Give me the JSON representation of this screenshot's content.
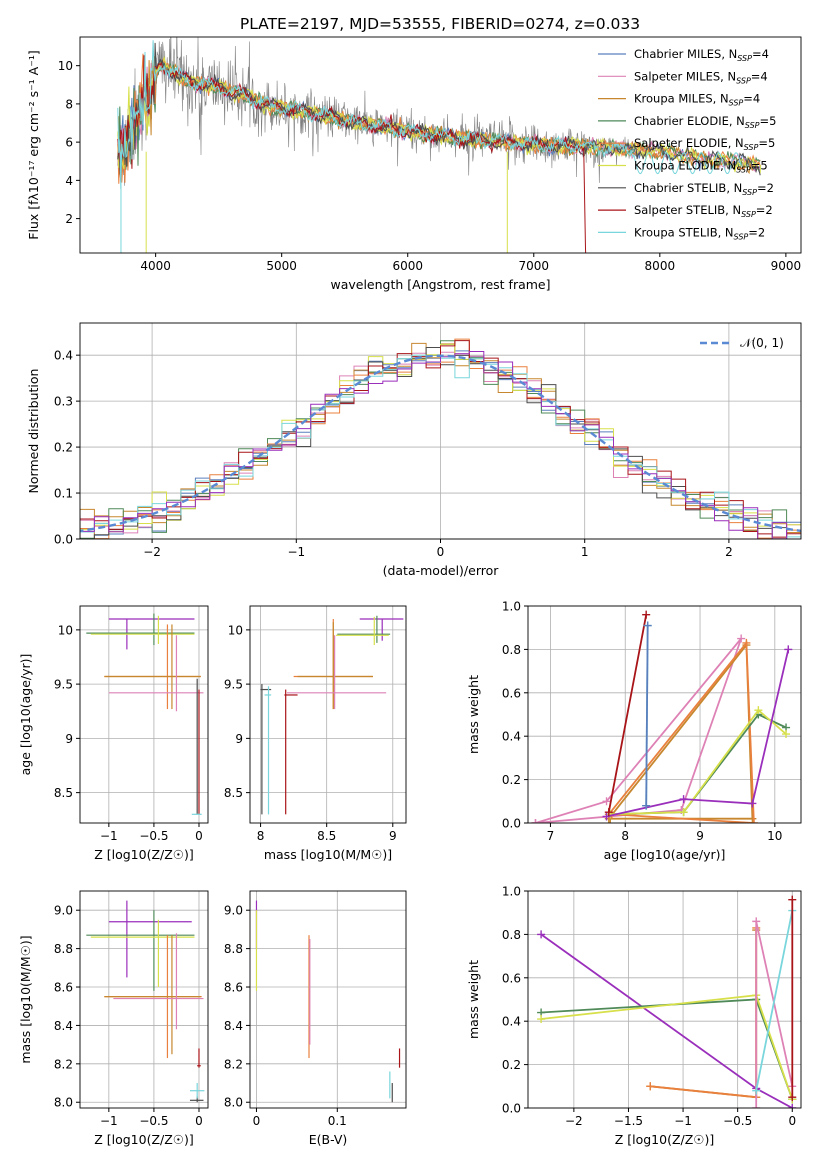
{
  "figure": {
    "title": "PLATE=2197, MJD=53555, FIBERID=0274, z=0.033"
  },
  "colors": {
    "chabrier_miles": "#5b7fbd",
    "salpeter_miles": "#de82b6",
    "kroupa_miles": "#c7872e",
    "chabrier_elodie": "#4f8a58",
    "salpeter_elodie": "#e9803e",
    "kroupa_elodie": "#d7e04a",
    "chabrier_stelib": "#4d4d4d",
    "salpeter_stelib": "#a81418",
    "kroupa_stelib": "#79d6dc",
    "purple": "#9a2fbb",
    "data_gray": "#808080",
    "normal_dashed": "#5a8ad4"
  },
  "chart_data": [
    {
      "id": "spectrum",
      "type": "line",
      "xlabel": "wavelength [Angstrom, rest frame]",
      "ylabel": "Flux [fλ10⁻¹⁷ erg cm⁻² s⁻¹ A⁻¹]",
      "xlim": [
        3400,
        9120
      ],
      "ylim": [
        0.2,
        11.5
      ],
      "xticks": [
        4000,
        5000,
        6000,
        7000,
        8000,
        9000
      ],
      "yticks": [
        2,
        4,
        6,
        8,
        10
      ],
      "legend_position": "top-right",
      "legend": [
        "Chabrier MILES, N_SSP=4",
        "Salpeter MILES, N_SSP=4",
        "Kroupa MILES, N_SSP=4",
        "Chabrier ELODIE, N_SSP=5",
        "Salpeter ELODIE, N_SSP=5",
        "Kroupa ELODIE, N_SSP=5",
        "Chabrier STELIB, N_SSP=2",
        "Salpeter STELIB, N_SSP=2",
        "Kroupa STELIB, N_SSP=2"
      ],
      "model_continuum": {
        "x": [
          3700,
          3750,
          3800,
          3850,
          3900,
          3950,
          4000,
          4050,
          4100,
          4200,
          4300,
          4400,
          4500,
          4600,
          4700,
          4800,
          4900,
          5000,
          5200,
          5400,
          5600,
          5800,
          6000,
          6200,
          6400,
          6600,
          6800,
          7000,
          7200,
          7400,
          7600,
          7800,
          8000,
          8200,
          8400,
          8600,
          8800
        ],
        "y": [
          5.2,
          5.8,
          6.6,
          7.6,
          8.0,
          8.2,
          9.6,
          10.1,
          9.8,
          9.4,
          9.1,
          9.0,
          8.9,
          8.6,
          8.5,
          8.1,
          7.9,
          7.8,
          7.6,
          7.3,
          7.0,
          6.8,
          6.6,
          6.4,
          6.2,
          6.1,
          6.0,
          5.9,
          5.8,
          5.8,
          5.7,
          5.6,
          5.5,
          5.3,
          5.1,
          5.0,
          4.8
        ]
      },
      "data_noise_amplitude_by_wavelength": {
        "x": [
          3700,
          4000,
          4500,
          5000,
          5500,
          6000,
          6500,
          7000,
          7500,
          7800
        ],
        "y": [
          2.5,
          2.0,
          1.6,
          1.2,
          1.0,
          0.9,
          0.9,
          1.1,
          0.8,
          0.4
        ]
      },
      "data_range_x": [
        3700,
        7800
      ],
      "kroupa_stelib_red_wiggle_range_x": [
        7800,
        8650
      ]
    },
    {
      "id": "residuals",
      "type": "histogram",
      "xlabel": "(data-model)/error",
      "ylabel": "Normed distribution",
      "xlim": [
        -2.5,
        2.5
      ],
      "ylim": [
        0,
        0.47
      ],
      "xticks": [
        -2,
        -1,
        0,
        1,
        2
      ],
      "yticks": [
        0.0,
        0.1,
        0.2,
        0.3,
        0.4
      ],
      "grid": true,
      "legend_position": "top-right",
      "legend": [
        "𝒩(0, 1)"
      ],
      "bin_width": 0.1
    },
    {
      "id": "age_vs_Z",
      "type": "scatter",
      "xlabel": "Z [log10(Z/Z☉)]",
      "ylabel": "age [log10(age/yr)]",
      "xlim": [
        -1.32,
        0.1
      ],
      "ylim": [
        8.22,
        10.22
      ],
      "xticks": [
        -1.0,
        -0.5,
        0.0
      ],
      "yticks": [
        8.5,
        9.0,
        9.5,
        10.0
      ],
      "grid": true
    },
    {
      "id": "mass_vs_mass",
      "type": "scatter",
      "xlabel": "mass [log10(M/M☉)]",
      "xlim": [
        7.92,
        9.1
      ],
      "ylim": [
        8.22,
        10.22
      ],
      "xticks": [
        8.0,
        8.5,
        9.0
      ],
      "yticks": [
        8.5,
        9.0,
        9.5,
        10.0
      ],
      "grid": true
    },
    {
      "id": "weight_vs_age",
      "type": "line",
      "xlabel": "age [log10(age/yr)]",
      "ylabel": "mass weight",
      "xlim": [
        6.7,
        10.35
      ],
      "ylim": [
        0,
        1
      ],
      "xticks": [
        7,
        8,
        9,
        10
      ],
      "yticks": [
        0.0,
        0.2,
        0.4,
        0.6,
        0.8,
        1.0
      ],
      "grid": true,
      "series": [
        {
          "color": "salpeter_miles",
          "x": [
            6.8,
            7.75,
            9.55,
            8.75,
            6.8
          ],
          "y": [
            0.0,
            0.1,
            0.85,
            0.06,
            0.0
          ]
        },
        {
          "color": "kroupa_miles",
          "x": [
            7.78,
            9.62,
            9.7,
            7.8
          ],
          "y": [
            0.02,
            0.82,
            0.02,
            0.02
          ]
        },
        {
          "color": "salpeter_elodie",
          "x": [
            7.78,
            9.62,
            9.72,
            7.82
          ],
          "y": [
            0.04,
            0.83,
            0.0,
            0.04
          ]
        },
        {
          "color": "chabrier_elodie",
          "x": [
            7.8,
            8.78,
            9.78,
            10.15
          ],
          "y": [
            0.04,
            0.05,
            0.5,
            0.44
          ]
        },
        {
          "color": "kroupa_elodie",
          "x": [
            7.8,
            8.78,
            9.78,
            10.15
          ],
          "y": [
            0.04,
            0.05,
            0.52,
            0.41
          ]
        },
        {
          "color": "purple",
          "x": [
            7.75,
            8.78,
            9.7,
            10.18
          ],
          "y": [
            0.03,
            0.11,
            0.09,
            0.8
          ]
        },
        {
          "color": "salpeter_stelib",
          "x": [
            7.78,
            8.28
          ],
          "y": [
            0.05,
            0.96
          ]
        },
        {
          "color": "kroupa_stelib",
          "x": [
            8.28,
            8.3
          ],
          "y": [
            0.08,
            0.91
          ]
        },
        {
          "color": "chabrier_miles",
          "x": [
            8.28,
            8.3
          ],
          "y": [
            0.08,
            0.91
          ]
        }
      ]
    },
    {
      "id": "mass_vs_Z",
      "type": "scatter",
      "xlabel": "Z [log10(Z/Z☉)]",
      "ylabel": "mass [log10(M/M☉)]",
      "xlim": [
        -1.32,
        0.1
      ],
      "ylim": [
        7.97,
        9.1
      ],
      "xticks": [
        -1.0,
        -0.5,
        0.0
      ],
      "yticks": [
        8.0,
        8.2,
        8.4,
        8.6,
        8.8,
        9.0
      ],
      "grid": true
    },
    {
      "id": "mass_vs_ebv",
      "type": "scatter",
      "xlabel": "E(B-V)",
      "xlim": [
        -0.008,
        0.185
      ],
      "ylim": [
        7.97,
        9.1
      ],
      "xticks": [
        0.0,
        0.1
      ],
      "yticks": [
        8.0,
        8.2,
        8.4,
        8.6,
        8.8,
        9.0
      ],
      "grid": true
    },
    {
      "id": "weight_vs_Z",
      "type": "line",
      "xlabel": "Z [log10(Z/Z☉)]",
      "ylabel": "mass weight",
      "xlim": [
        -2.42,
        0.08
      ],
      "ylim": [
        0,
        1
      ],
      "xticks": [
        -2.0,
        -1.5,
        -1.0,
        -0.5,
        0.0
      ],
      "yticks": [
        0.0,
        0.2,
        0.4,
        0.6,
        0.8,
        1.0
      ],
      "grid": true,
      "series": [
        {
          "color": "purple",
          "x": [
            -2.3,
            -0.33,
            0.0
          ],
          "y": [
            0.8,
            0.09,
            0.0
          ]
        },
        {
          "color": "chabrier_elodie",
          "x": [
            -2.3,
            -0.33,
            0.0
          ],
          "y": [
            0.44,
            0.5,
            0.04
          ]
        },
        {
          "color": "kroupa_elodie",
          "x": [
            -2.3,
            -0.33,
            0.0
          ],
          "y": [
            0.41,
            0.52,
            0.04
          ]
        },
        {
          "color": "kroupa_miles",
          "x": [
            -1.3,
            -0.33,
            -0.33
          ],
          "y": [
            0.1,
            0.05,
            0.82
          ]
        },
        {
          "color": "salpeter_elodie",
          "x": [
            -1.3,
            -0.33,
            -0.33
          ],
          "y": [
            0.1,
            0.05,
            0.83
          ]
        },
        {
          "color": "salpeter_miles",
          "x": [
            -0.33,
            -0.33,
            0.0
          ],
          "y": [
            0.0,
            0.86,
            0.1
          ]
        },
        {
          "color": "kroupa_stelib",
          "x": [
            -0.33,
            0.0
          ],
          "y": [
            0.08,
            0.91
          ]
        },
        {
          "color": "salpeter_stelib",
          "x": [
            0.0,
            0.0
          ],
          "y": [
            0.05,
            0.96
          ]
        }
      ]
    }
  ]
}
